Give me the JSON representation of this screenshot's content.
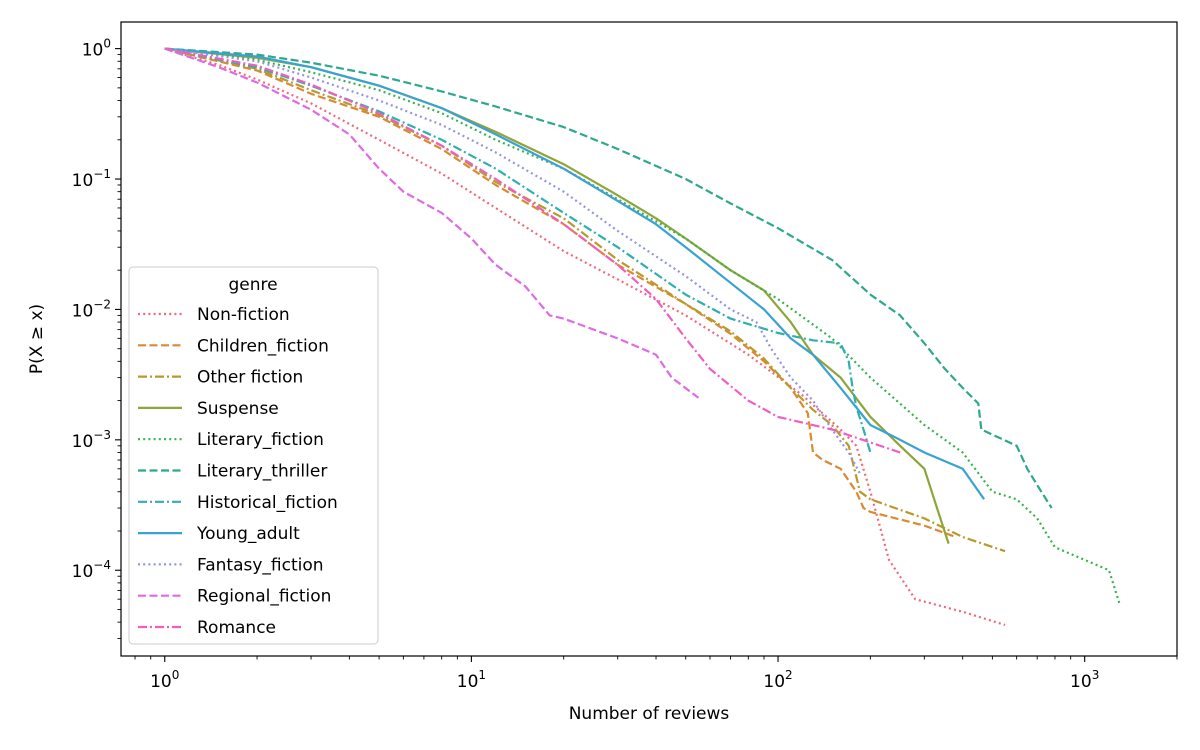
{
  "chart_data": {
    "type": "line",
    "x_scale": "log",
    "y_scale": "log",
    "xlabel": "Number of reviews",
    "ylabel": "P(X ≥ x)",
    "xlim": [
      0.72,
      2000
    ],
    "ylim": [
      2.2e-05,
      1.6
    ],
    "x_ticks": [
      {
        "value": 1,
        "base": "10",
        "exp": "0"
      },
      {
        "value": 10,
        "base": "10",
        "exp": "1"
      },
      {
        "value": 100,
        "base": "10",
        "exp": "2"
      },
      {
        "value": 1000,
        "base": "10",
        "exp": "3"
      }
    ],
    "y_ticks": [
      {
        "value": 1,
        "base": "10",
        "exp": "0"
      },
      {
        "value": 0.1,
        "base": "10",
        "exp": "−1"
      },
      {
        "value": 0.01,
        "base": "10",
        "exp": "−2"
      },
      {
        "value": 0.001,
        "base": "10",
        "exp": "−3"
      },
      {
        "value": 0.0001,
        "base": "10",
        "exp": "−4"
      }
    ],
    "grid": false,
    "legend": {
      "title": "genre",
      "placement": "lower-left"
    },
    "series": [
      {
        "name": "Non-fiction",
        "color": "#f0687a",
        "dash": "dotted",
        "x": [
          1,
          1.5,
          2,
          3,
          5,
          8,
          12,
          20,
          30,
          50,
          80,
          120,
          160,
          180,
          200,
          230,
          280,
          400,
          550
        ],
        "y": [
          1,
          0.75,
          0.58,
          0.38,
          0.2,
          0.11,
          0.06,
          0.028,
          0.017,
          0.009,
          0.0045,
          0.0022,
          0.0012,
          0.0009,
          0.0004,
          0.00012,
          6e-05,
          4.8e-05,
          3.8e-05
        ]
      },
      {
        "name": "Children_fiction",
        "color": "#d98a32",
        "dash": "dashed",
        "x": [
          1,
          2,
          3,
          5,
          8,
          12,
          20,
          30,
          50,
          70,
          90,
          110,
          125,
          130,
          140,
          160,
          180,
          190,
          200,
          300,
          380
        ],
        "y": [
          1,
          0.68,
          0.45,
          0.3,
          0.17,
          0.09,
          0.045,
          0.022,
          0.011,
          0.0065,
          0.004,
          0.0025,
          0.0016,
          0.0008,
          0.0007,
          0.0006,
          0.0004,
          0.0003,
          0.00028,
          0.00022,
          0.00018
        ]
      },
      {
        "name": "Other fiction",
        "color": "#b89a2c",
        "dash": "dashdot",
        "x": [
          1,
          2,
          3,
          5,
          8,
          12,
          20,
          30,
          50,
          70,
          90,
          110,
          130,
          150,
          170,
          185,
          200,
          300,
          400,
          550
        ],
        "y": [
          1,
          0.7,
          0.48,
          0.31,
          0.18,
          0.095,
          0.05,
          0.024,
          0.011,
          0.0068,
          0.0042,
          0.0025,
          0.0017,
          0.0013,
          0.0009,
          0.0004,
          0.00035,
          0.00025,
          0.00018,
          0.00014
        ]
      },
      {
        "name": "Suspense",
        "color": "#8ea53a",
        "dash": "solid",
        "x": [
          1,
          2,
          3,
          5,
          8,
          12,
          20,
          30,
          40,
          50,
          70,
          90,
          110,
          130,
          160,
          200,
          250,
          300,
          330,
          360
        ],
        "y": [
          1,
          0.85,
          0.72,
          0.52,
          0.35,
          0.23,
          0.13,
          0.075,
          0.05,
          0.035,
          0.02,
          0.014,
          0.008,
          0.0045,
          0.003,
          0.0015,
          0.0009,
          0.0006,
          0.0003,
          0.00016
        ]
      },
      {
        "name": "Literary_fiction",
        "color": "#36b34e",
        "dash": "dotted",
        "x": [
          1,
          2,
          3,
          5,
          8,
          12,
          20,
          30,
          50,
          70,
          100,
          150,
          200,
          300,
          400,
          500,
          600,
          700,
          800,
          1000,
          1200,
          1300
        ],
        "y": [
          1,
          0.82,
          0.66,
          0.48,
          0.32,
          0.2,
          0.12,
          0.07,
          0.035,
          0.02,
          0.012,
          0.006,
          0.003,
          0.0013,
          0.0008,
          0.0004,
          0.00035,
          0.00025,
          0.00015,
          0.00012,
          0.0001,
          5.5e-05
        ]
      },
      {
        "name": "Literary_thriller",
        "color": "#2ea88c",
        "dash": "dashed",
        "x": [
          1,
          2,
          3,
          5,
          8,
          12,
          20,
          30,
          50,
          70,
          100,
          150,
          200,
          250,
          300,
          350,
          400,
          450,
          460,
          600,
          650,
          700,
          780
        ],
        "y": [
          1,
          0.9,
          0.78,
          0.62,
          0.47,
          0.36,
          0.25,
          0.17,
          0.1,
          0.065,
          0.042,
          0.024,
          0.013,
          0.009,
          0.0055,
          0.0035,
          0.0025,
          0.0019,
          0.0012,
          0.0009,
          0.0006,
          0.00045,
          0.0003
        ]
      },
      {
        "name": "Historical_fiction",
        "color": "#30aeb0",
        "dash": "dashdot",
        "x": [
          1,
          2,
          3,
          5,
          8,
          12,
          20,
          30,
          50,
          70,
          100,
          130,
          160,
          170,
          175,
          180,
          190,
          200
        ],
        "y": [
          1,
          0.72,
          0.52,
          0.33,
          0.2,
          0.12,
          0.055,
          0.03,
          0.013,
          0.0085,
          0.0066,
          0.0058,
          0.0055,
          0.004,
          0.0025,
          0.0018,
          0.0012,
          0.0008
        ]
      },
      {
        "name": "Young_adult",
        "color": "#3aa1d3",
        "dash": "solid",
        "x": [
          1,
          2,
          3,
          5,
          8,
          12,
          20,
          30,
          40,
          50,
          70,
          90,
          110,
          130,
          160,
          200,
          250,
          300,
          400,
          470
        ],
        "y": [
          1,
          0.87,
          0.72,
          0.52,
          0.35,
          0.22,
          0.12,
          0.068,
          0.045,
          0.03,
          0.016,
          0.01,
          0.006,
          0.0045,
          0.0025,
          0.0013,
          0.001,
          0.0008,
          0.0006,
          0.00035
        ]
      },
      {
        "name": "Fantasy_fiction",
        "color": "#9394e0",
        "dash": "dotted",
        "x": [
          1,
          2,
          3,
          5,
          8,
          12,
          20,
          30,
          50,
          70,
          85,
          95,
          110,
          130,
          150,
          170,
          185
        ],
        "y": [
          1,
          0.8,
          0.6,
          0.4,
          0.26,
          0.16,
          0.08,
          0.04,
          0.018,
          0.01,
          0.008,
          0.005,
          0.003,
          0.002,
          0.0012,
          0.0008,
          0.00055
        ]
      },
      {
        "name": "Regional_fiction",
        "color": "#de6ae4",
        "dash": "dashed",
        "x": [
          1,
          1.5,
          2,
          3,
          4,
          5,
          6,
          8,
          10,
          12,
          15,
          18,
          20,
          30,
          40,
          45,
          55
        ],
        "y": [
          1,
          0.72,
          0.55,
          0.34,
          0.22,
          0.12,
          0.08,
          0.055,
          0.035,
          0.022,
          0.015,
          0.009,
          0.0085,
          0.006,
          0.0045,
          0.003,
          0.0021
        ]
      },
      {
        "name": "Romance",
        "color": "#ef5ec0",
        "dash": "dashdot",
        "x": [
          1,
          2,
          3,
          5,
          8,
          12,
          20,
          30,
          40,
          50,
          60,
          80,
          100,
          150,
          250
        ],
        "y": [
          1,
          0.74,
          0.53,
          0.32,
          0.18,
          0.1,
          0.045,
          0.022,
          0.012,
          0.006,
          0.0035,
          0.002,
          0.0015,
          0.0012,
          0.0008
        ]
      }
    ]
  }
}
